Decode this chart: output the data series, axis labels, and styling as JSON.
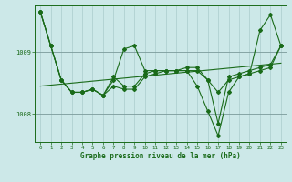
{
  "xlabel": "Graphe pression niveau de la mer (hPa)",
  "background_color": "#cce8e8",
  "plot_bg_color": "#cce8e8",
  "grid_color": "#aacccc",
  "line_color": "#1a6b1a",
  "xlim": [
    -0.5,
    23.5
  ],
  "ylim": [
    1007.55,
    1009.75
  ],
  "yticks": [
    1008,
    1009
  ],
  "xticks": [
    0,
    1,
    2,
    3,
    4,
    5,
    6,
    7,
    8,
    9,
    10,
    11,
    12,
    13,
    14,
    15,
    16,
    17,
    18,
    19,
    20,
    21,
    22,
    23
  ],
  "series1_x": [
    0,
    1,
    2,
    3,
    4,
    5,
    6,
    7,
    8,
    9,
    10,
    11,
    12,
    13,
    14,
    15,
    16,
    17,
    18,
    19,
    20,
    21,
    22,
    23
  ],
  "series1_y": [
    1009.65,
    1009.1,
    1008.55,
    1008.35,
    1008.35,
    1008.4,
    1008.3,
    1008.55,
    1009.05,
    1009.1,
    1008.7,
    1008.7,
    1008.7,
    1008.7,
    1008.7,
    1008.45,
    1008.05,
    1007.65,
    1008.35,
    1008.6,
    1008.65,
    1009.35,
    1009.6,
    1009.1
  ],
  "series2_x": [
    0,
    1,
    2,
    3,
    4,
    5,
    6,
    7,
    8,
    9,
    10,
    11,
    12,
    13,
    14,
    15,
    16,
    17,
    18,
    19,
    20,
    21,
    22,
    23
  ],
  "series2_y": [
    1009.65,
    1009.1,
    1008.55,
    1008.35,
    1008.35,
    1008.4,
    1008.3,
    1008.45,
    1008.4,
    1008.4,
    1008.6,
    1008.65,
    1008.7,
    1008.7,
    1008.7,
    1008.7,
    1008.55,
    1008.35,
    1008.55,
    1008.6,
    1008.65,
    1008.7,
    1008.75,
    1009.1
  ],
  "series3_x": [
    0,
    1,
    2,
    3,
    4,
    5,
    6,
    7,
    8,
    9,
    10,
    11,
    12,
    13,
    14,
    15,
    16,
    17,
    18,
    19,
    20,
    21,
    22,
    23
  ],
  "series3_y": [
    1009.65,
    1009.1,
    1008.55,
    1008.35,
    1008.35,
    1008.4,
    1008.3,
    1008.6,
    1008.45,
    1008.45,
    1008.65,
    1008.7,
    1008.7,
    1008.7,
    1008.75,
    1008.75,
    1008.55,
    1007.85,
    1008.6,
    1008.65,
    1008.7,
    1008.75,
    1008.8,
    1009.1
  ],
  "trend_x": [
    0,
    23
  ],
  "trend_y": [
    1008.45,
    1008.82
  ]
}
